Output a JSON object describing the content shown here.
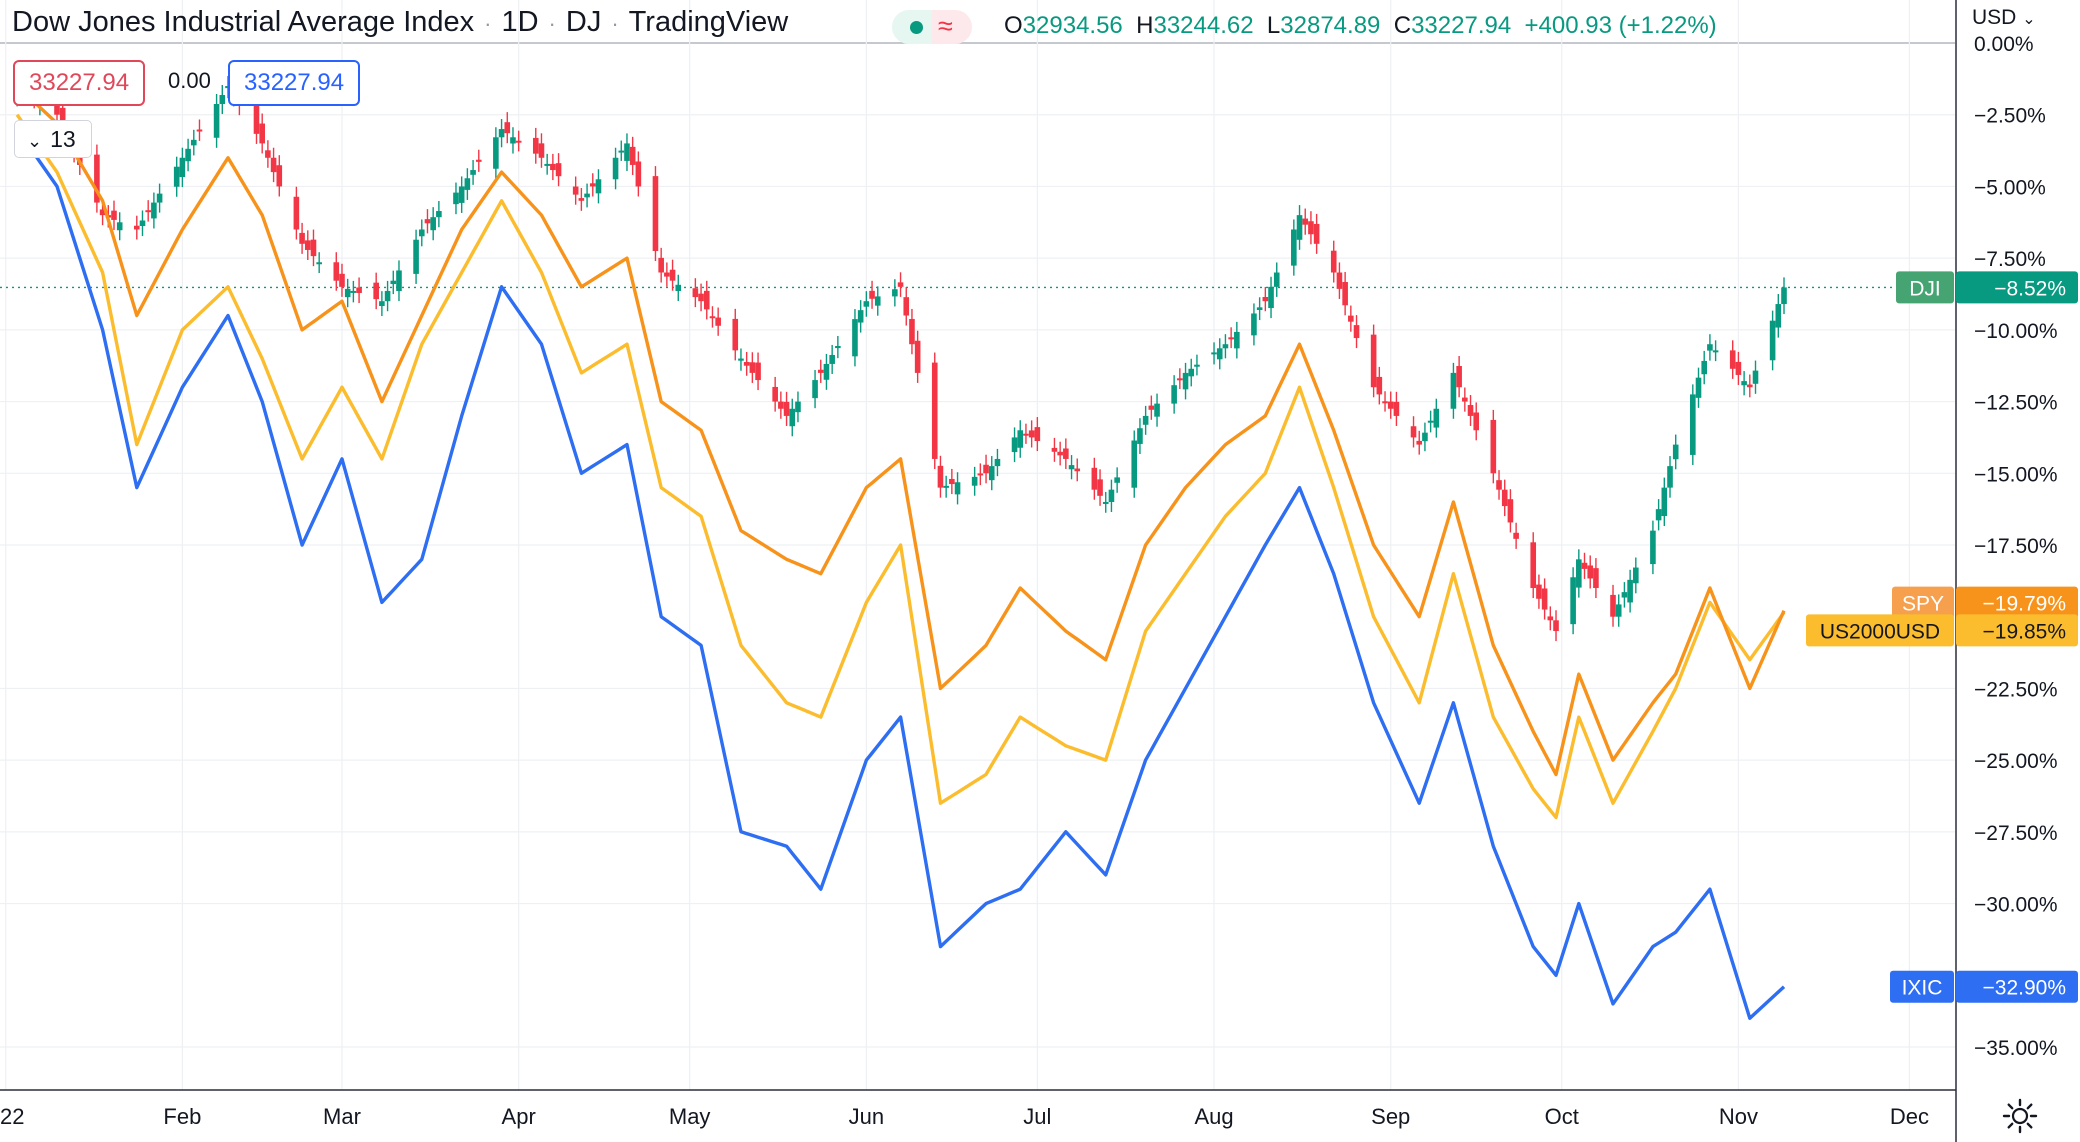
{
  "header": {
    "title": "Dow Jones Industrial Average Index",
    "interval": "1D",
    "exchange": "DJ",
    "source": "TradingView"
  },
  "ohlc": {
    "o_label": "O",
    "o_value": "32934.56",
    "h_label": "H",
    "h_value": "33244.62",
    "l_label": "L",
    "l_value": "32874.89",
    "c_label": "C",
    "c_value": "33227.94",
    "change": "+400.93 (+1.22%)"
  },
  "order_panel": {
    "sell_price": "33227.94",
    "spread": "0.00",
    "buy_price": "33227.94"
  },
  "indicator_toggle": {
    "count": "13"
  },
  "currency": {
    "label": "USD"
  },
  "colors": {
    "DJI_up": "#089981",
    "DJI_down": "#f23645",
    "SPY": "#f7931a",
    "US2000USD": "#fbbd2d",
    "IXIC": "#2e6ef2"
  },
  "icons": [
    "chevron-down-icon",
    "settings-gear-icon"
  ],
  "chart_data": {
    "type": "line",
    "y_unit": "percent change",
    "ylim": [
      -36.5,
      1.5
    ],
    "y_ticks": [
      0,
      -2.5,
      -5,
      -7.5,
      -10,
      -12.5,
      -15,
      -17.5,
      -22.5,
      -25,
      -27.5,
      -30,
      -35
    ],
    "y_tick_labels": [
      "0.00%",
      "−2.50%",
      "−5.00%",
      "−7.50%",
      "−10.00%",
      "−12.50%",
      "−15.00%",
      "−17.50%",
      "−22.50%",
      "−25.00%",
      "−27.50%",
      "−30.00%",
      "−35.00%"
    ],
    "x_tick_labels": [
      "22",
      "Feb",
      "Mar",
      "Apr",
      "May",
      "Jun",
      "Jul",
      "Aug",
      "Sep",
      "Oct",
      "Nov",
      "Dec"
    ],
    "x_tick_dates": [
      "2022-01-01",
      "2022-02-01",
      "2022-03-01",
      "2022-04-01",
      "2022-05-01",
      "2022-06-01",
      "2022-07-01",
      "2022-08-01",
      "2022-09-01",
      "2022-10-01",
      "2022-11-01",
      "2022-12-01"
    ],
    "x_range": [
      "2021-12-31",
      "2022-12-09"
    ],
    "grid": true,
    "series": [
      {
        "name": "DJI",
        "label": "−8.52%",
        "kind": "candlestick",
        "points": [
          [
            "2022-01-03",
            -1.5
          ],
          [
            "2022-01-10",
            -2.5
          ],
          [
            "2022-01-18",
            -6.0
          ],
          [
            "2022-01-24",
            -6.5
          ],
          [
            "2022-02-01",
            -4.0
          ],
          [
            "2022-02-09",
            -1.5
          ],
          [
            "2022-02-15",
            -3.5
          ],
          [
            "2022-02-22",
            -7.0
          ],
          [
            "2022-03-01",
            -8.5
          ],
          [
            "2022-03-08",
            -9.0
          ],
          [
            "2022-03-15",
            -6.5
          ],
          [
            "2022-03-22",
            -5.0
          ],
          [
            "2022-03-29",
            -3.0
          ],
          [
            "2022-04-05",
            -4.0
          ],
          [
            "2022-04-12",
            -5.5
          ],
          [
            "2022-04-20",
            -3.5
          ],
          [
            "2022-04-26",
            -8.0
          ],
          [
            "2022-05-03",
            -9.0
          ],
          [
            "2022-05-10",
            -11.0
          ],
          [
            "2022-05-18",
            -13.0
          ],
          [
            "2022-05-24",
            -11.5
          ],
          [
            "2022-06-01",
            -9.0
          ],
          [
            "2022-06-07",
            -8.5
          ],
          [
            "2022-06-14",
            -15.5
          ],
          [
            "2022-06-22",
            -15.0
          ],
          [
            "2022-06-28",
            -13.5
          ],
          [
            "2022-07-06",
            -14.5
          ],
          [
            "2022-07-13",
            -16.0
          ],
          [
            "2022-07-20",
            -13.0
          ],
          [
            "2022-07-27",
            -11.5
          ],
          [
            "2022-08-03",
            -10.5
          ],
          [
            "2022-08-10",
            -9.0
          ],
          [
            "2022-08-16",
            -6.0
          ],
          [
            "2022-08-22",
            -8.0
          ],
          [
            "2022-08-29",
            -12.0
          ],
          [
            "2022-09-06",
            -14.0
          ],
          [
            "2022-09-12",
            -11.5
          ],
          [
            "2022-09-19",
            -15.0
          ],
          [
            "2022-09-26",
            -19.0
          ],
          [
            "2022-09-30",
            -20.5
          ],
          [
            "2022-10-04",
            -18.0
          ],
          [
            "2022-10-10",
            -20.0
          ],
          [
            "2022-10-17",
            -17.0
          ],
          [
            "2022-10-21",
            -14.0
          ],
          [
            "2022-10-27",
            -10.5
          ],
          [
            "2022-11-03",
            -12.0
          ],
          [
            "2022-11-09",
            -8.52
          ]
        ]
      },
      {
        "name": "SPY",
        "label": "−19.79%",
        "points": [
          [
            "2022-01-03",
            -1.5
          ],
          [
            "2022-01-10",
            -2.8
          ],
          [
            "2022-01-18",
            -5.5
          ],
          [
            "2022-01-24",
            -9.5
          ],
          [
            "2022-02-01",
            -6.5
          ],
          [
            "2022-02-09",
            -4.0
          ],
          [
            "2022-02-15",
            -6.0
          ],
          [
            "2022-02-22",
            -10.0
          ],
          [
            "2022-03-01",
            -9.0
          ],
          [
            "2022-03-08",
            -12.5
          ],
          [
            "2022-03-15",
            -9.5
          ],
          [
            "2022-03-22",
            -6.5
          ],
          [
            "2022-03-29",
            -4.5
          ],
          [
            "2022-04-05",
            -6.0
          ],
          [
            "2022-04-12",
            -8.5
          ],
          [
            "2022-04-20",
            -7.5
          ],
          [
            "2022-04-26",
            -12.5
          ],
          [
            "2022-05-03",
            -13.5
          ],
          [
            "2022-05-10",
            -17.0
          ],
          [
            "2022-05-18",
            -18.0
          ],
          [
            "2022-05-24",
            -18.5
          ],
          [
            "2022-06-01",
            -15.5
          ],
          [
            "2022-06-07",
            -14.5
          ],
          [
            "2022-06-14",
            -22.5
          ],
          [
            "2022-06-22",
            -21.0
          ],
          [
            "2022-06-28",
            -19.0
          ],
          [
            "2022-07-06",
            -20.5
          ],
          [
            "2022-07-13",
            -21.5
          ],
          [
            "2022-07-20",
            -17.5
          ],
          [
            "2022-07-27",
            -15.5
          ],
          [
            "2022-08-03",
            -14.0
          ],
          [
            "2022-08-10",
            -13.0
          ],
          [
            "2022-08-16",
            -10.5
          ],
          [
            "2022-08-22",
            -13.5
          ],
          [
            "2022-08-29",
            -17.5
          ],
          [
            "2022-09-06",
            -20.0
          ],
          [
            "2022-09-12",
            -16.0
          ],
          [
            "2022-09-19",
            -21.0
          ],
          [
            "2022-09-26",
            -24.0
          ],
          [
            "2022-09-30",
            -25.5
          ],
          [
            "2022-10-04",
            -22.0
          ],
          [
            "2022-10-10",
            -25.0
          ],
          [
            "2022-10-17",
            -23.0
          ],
          [
            "2022-10-21",
            -22.0
          ],
          [
            "2022-10-27",
            -19.0
          ],
          [
            "2022-11-03",
            -22.5
          ],
          [
            "2022-11-09",
            -19.79
          ]
        ]
      },
      {
        "name": "US2000USD",
        "label": "−19.85%",
        "points": [
          [
            "2022-01-03",
            -2.5
          ],
          [
            "2022-01-10",
            -4.5
          ],
          [
            "2022-01-18",
            -8.0
          ],
          [
            "2022-01-24",
            -14.0
          ],
          [
            "2022-02-01",
            -10.0
          ],
          [
            "2022-02-09",
            -8.5
          ],
          [
            "2022-02-15",
            -11.0
          ],
          [
            "2022-02-22",
            -14.5
          ],
          [
            "2022-03-01",
            -12.0
          ],
          [
            "2022-03-08",
            -14.5
          ],
          [
            "2022-03-15",
            -10.5
          ],
          [
            "2022-03-22",
            -8.0
          ],
          [
            "2022-03-29",
            -5.5
          ],
          [
            "2022-04-05",
            -8.0
          ],
          [
            "2022-04-12",
            -11.5
          ],
          [
            "2022-04-20",
            -10.5
          ],
          [
            "2022-04-26",
            -15.5
          ],
          [
            "2022-05-03",
            -16.5
          ],
          [
            "2022-05-10",
            -21.0
          ],
          [
            "2022-05-18",
            -23.0
          ],
          [
            "2022-05-24",
            -23.5
          ],
          [
            "2022-06-01",
            -19.5
          ],
          [
            "2022-06-07",
            -17.5
          ],
          [
            "2022-06-14",
            -26.5
          ],
          [
            "2022-06-22",
            -25.5
          ],
          [
            "2022-06-28",
            -23.5
          ],
          [
            "2022-07-06",
            -24.5
          ],
          [
            "2022-07-13",
            -25.0
          ],
          [
            "2022-07-20",
            -20.5
          ],
          [
            "2022-07-27",
            -18.5
          ],
          [
            "2022-08-03",
            -16.5
          ],
          [
            "2022-08-10",
            -15.0
          ],
          [
            "2022-08-16",
            -12.0
          ],
          [
            "2022-08-22",
            -15.5
          ],
          [
            "2022-08-29",
            -20.0
          ],
          [
            "2022-09-06",
            -23.0
          ],
          [
            "2022-09-12",
            -18.5
          ],
          [
            "2022-09-19",
            -23.5
          ],
          [
            "2022-09-26",
            -26.0
          ],
          [
            "2022-09-30",
            -27.0
          ],
          [
            "2022-10-04",
            -23.5
          ],
          [
            "2022-10-10",
            -26.5
          ],
          [
            "2022-10-17",
            -24.0
          ],
          [
            "2022-10-21",
            -22.5
          ],
          [
            "2022-10-27",
            -19.5
          ],
          [
            "2022-11-03",
            -21.5
          ],
          [
            "2022-11-09",
            -19.85
          ]
        ]
      },
      {
        "name": "IXIC",
        "label": "−32.90%",
        "points": [
          [
            "2022-01-03",
            -3.0
          ],
          [
            "2022-01-10",
            -5.0
          ],
          [
            "2022-01-18",
            -10.0
          ],
          [
            "2022-01-24",
            -15.5
          ],
          [
            "2022-02-01",
            -12.0
          ],
          [
            "2022-02-09",
            -9.5
          ],
          [
            "2022-02-15",
            -12.5
          ],
          [
            "2022-02-22",
            -17.5
          ],
          [
            "2022-03-01",
            -14.5
          ],
          [
            "2022-03-08",
            -19.5
          ],
          [
            "2022-03-15",
            -18.0
          ],
          [
            "2022-03-22",
            -13.0
          ],
          [
            "2022-03-29",
            -8.5
          ],
          [
            "2022-04-05",
            -10.5
          ],
          [
            "2022-04-12",
            -15.0
          ],
          [
            "2022-04-20",
            -14.0
          ],
          [
            "2022-04-26",
            -20.0
          ],
          [
            "2022-05-03",
            -21.0
          ],
          [
            "2022-05-10",
            -27.5
          ],
          [
            "2022-05-18",
            -28.0
          ],
          [
            "2022-05-24",
            -29.5
          ],
          [
            "2022-06-01",
            -25.0
          ],
          [
            "2022-06-07",
            -23.5
          ],
          [
            "2022-06-14",
            -31.5
          ],
          [
            "2022-06-22",
            -30.0
          ],
          [
            "2022-06-28",
            -29.5
          ],
          [
            "2022-07-06",
            -27.5
          ],
          [
            "2022-07-13",
            -29.0
          ],
          [
            "2022-07-20",
            -25.0
          ],
          [
            "2022-07-27",
            -22.5
          ],
          [
            "2022-08-03",
            -20.0
          ],
          [
            "2022-08-10",
            -17.5
          ],
          [
            "2022-08-16",
            -15.5
          ],
          [
            "2022-08-22",
            -18.5
          ],
          [
            "2022-08-29",
            -23.0
          ],
          [
            "2022-09-06",
            -26.5
          ],
          [
            "2022-09-12",
            -23.0
          ],
          [
            "2022-09-19",
            -28.0
          ],
          [
            "2022-09-26",
            -31.5
          ],
          [
            "2022-09-30",
            -32.5
          ],
          [
            "2022-10-04",
            -30.0
          ],
          [
            "2022-10-10",
            -33.5
          ],
          [
            "2022-10-17",
            -31.5
          ],
          [
            "2022-10-21",
            -31.0
          ],
          [
            "2022-10-27",
            -29.5
          ],
          [
            "2022-11-03",
            -34.0
          ],
          [
            "2022-11-09",
            -32.9
          ]
        ]
      }
    ]
  }
}
